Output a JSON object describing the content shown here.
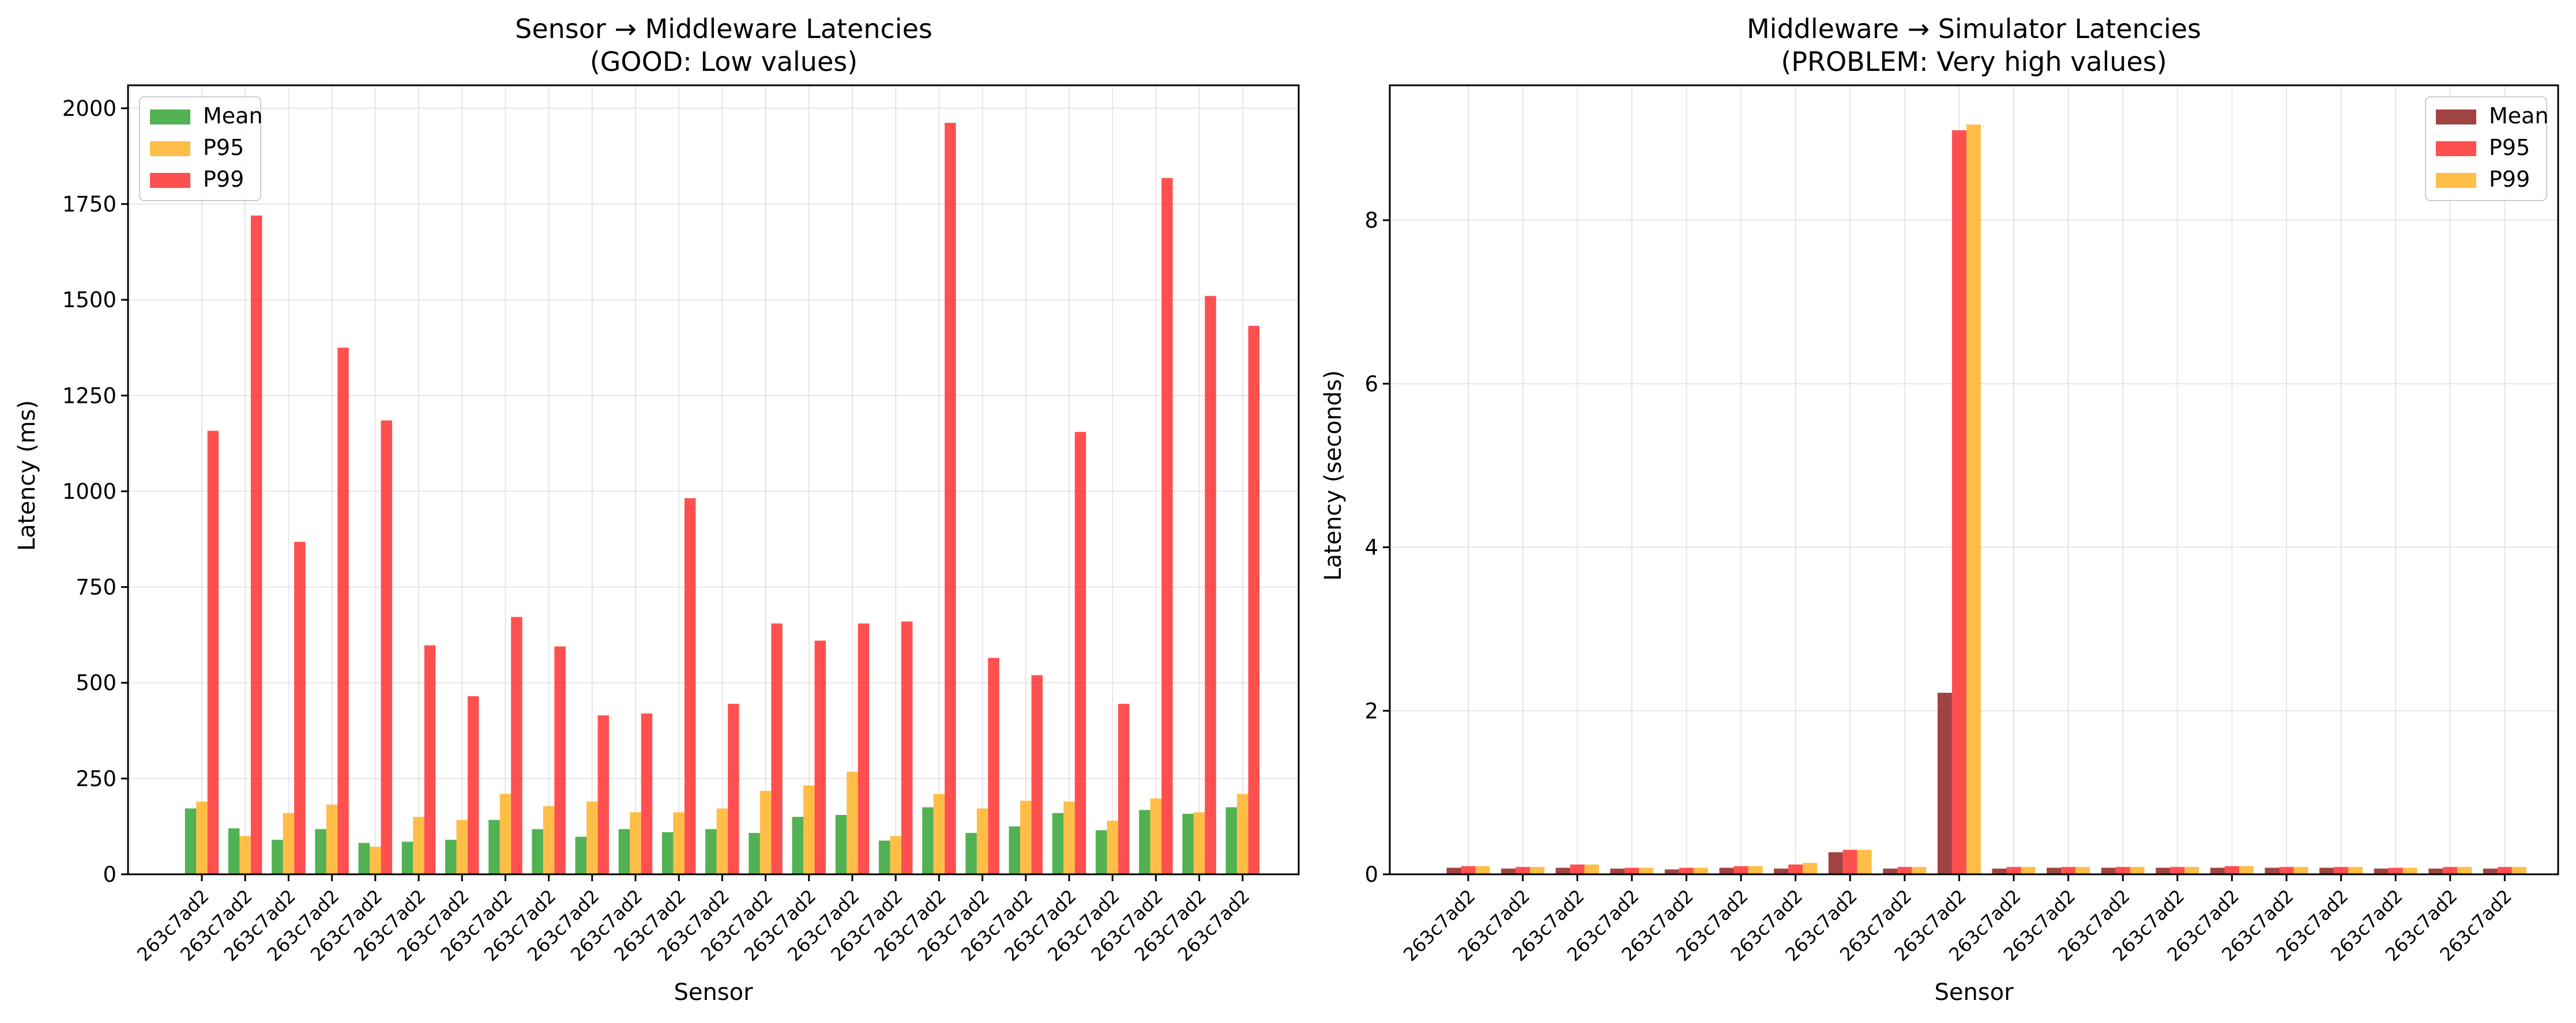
{
  "chart_data": [
    {
      "type": "bar",
      "title": "Sensor → Middleware Latencies",
      "subtitle": "(GOOD: Low values)",
      "xlabel": "Sensor",
      "ylabel": "Latency (ms)",
      "ylim": [
        0,
        2060
      ],
      "yticks": [
        0,
        250,
        500,
        750,
        1000,
        1250,
        1500,
        1750,
        2000
      ],
      "grid": true,
      "legend_position": "upper-left",
      "categories": [
        "263c7ad2",
        "263c7ad2",
        "263c7ad2",
        "263c7ad2",
        "263c7ad2",
        "263c7ad2",
        "263c7ad2",
        "263c7ad2",
        "263c7ad2",
        "263c7ad2",
        "263c7ad2",
        "263c7ad2",
        "263c7ad2",
        "263c7ad2",
        "263c7ad2",
        "263c7ad2",
        "263c7ad2",
        "263c7ad2",
        "263c7ad2",
        "263c7ad2",
        "263c7ad2",
        "263c7ad2",
        "263c7ad2",
        "263c7ad2",
        "263c7ad2"
      ],
      "series": [
        {
          "name": "Mean",
          "color": "#2ca02c",
          "values": [
            172,
            120,
            90,
            118,
            82,
            85,
            90,
            142,
            118,
            98,
            118,
            110,
            118,
            108,
            150,
            155,
            88,
            175,
            108,
            125,
            160,
            115,
            168,
            158,
            175
          ]
        },
        {
          "name": "P95",
          "color": "#ffb020",
          "values": [
            190,
            100,
            160,
            182,
            72,
            150,
            142,
            210,
            178,
            190,
            162,
            162,
            172,
            218,
            232,
            268,
            100,
            210,
            172,
            192,
            190,
            140,
            198,
            162,
            210
          ]
        },
        {
          "name": "P99",
          "color": "#ff2a2a",
          "values": [
            1158,
            1720,
            868,
            1375,
            1185,
            598,
            465,
            672,
            595,
            415,
            420,
            982,
            445,
            655,
            610,
            655,
            660,
            1962,
            565,
            520,
            1155,
            445,
            1818,
            1510,
            1432
          ]
        }
      ]
    },
    {
      "type": "bar",
      "title": "Middleware → Simulator Latencies",
      "subtitle": "(PROBLEM: Very high values)",
      "xlabel": "Sensor",
      "ylabel": "Latency (seconds)",
      "ylim": [
        0,
        9.65
      ],
      "yticks": [
        0,
        2,
        4,
        6,
        8
      ],
      "grid": true,
      "legend_position": "upper-right",
      "categories": [
        "263c7ad2",
        "263c7ad2",
        "263c7ad2",
        "263c7ad2",
        "263c7ad2",
        "263c7ad2",
        "263c7ad2",
        "263c7ad2",
        "263c7ad2",
        "263c7ad2",
        "263c7ad2",
        "263c7ad2",
        "263c7ad2",
        "263c7ad2",
        "263c7ad2",
        "263c7ad2",
        "263c7ad2",
        "263c7ad2",
        "263c7ad2",
        "263c7ad2"
      ],
      "series": [
        {
          "name": "Mean",
          "color": "#8b1a1a",
          "values": [
            0.08,
            0.07,
            0.08,
            0.07,
            0.06,
            0.08,
            0.07,
            0.27,
            0.07,
            2.22,
            0.07,
            0.08,
            0.08,
            0.08,
            0.08,
            0.08,
            0.08,
            0.07,
            0.07,
            0.07
          ]
        },
        {
          "name": "P95",
          "color": "#ff2a2a",
          "values": [
            0.1,
            0.09,
            0.12,
            0.08,
            0.08,
            0.1,
            0.12,
            0.3,
            0.09,
            9.1,
            0.09,
            0.09,
            0.09,
            0.09,
            0.1,
            0.09,
            0.09,
            0.08,
            0.09,
            0.09
          ]
        },
        {
          "name": "P99",
          "color": "#ffb020",
          "values": [
            0.1,
            0.09,
            0.12,
            0.08,
            0.08,
            0.1,
            0.14,
            0.3,
            0.09,
            9.17,
            0.09,
            0.09,
            0.09,
            0.09,
            0.1,
            0.09,
            0.09,
            0.08,
            0.09,
            0.09
          ]
        }
      ]
    }
  ]
}
